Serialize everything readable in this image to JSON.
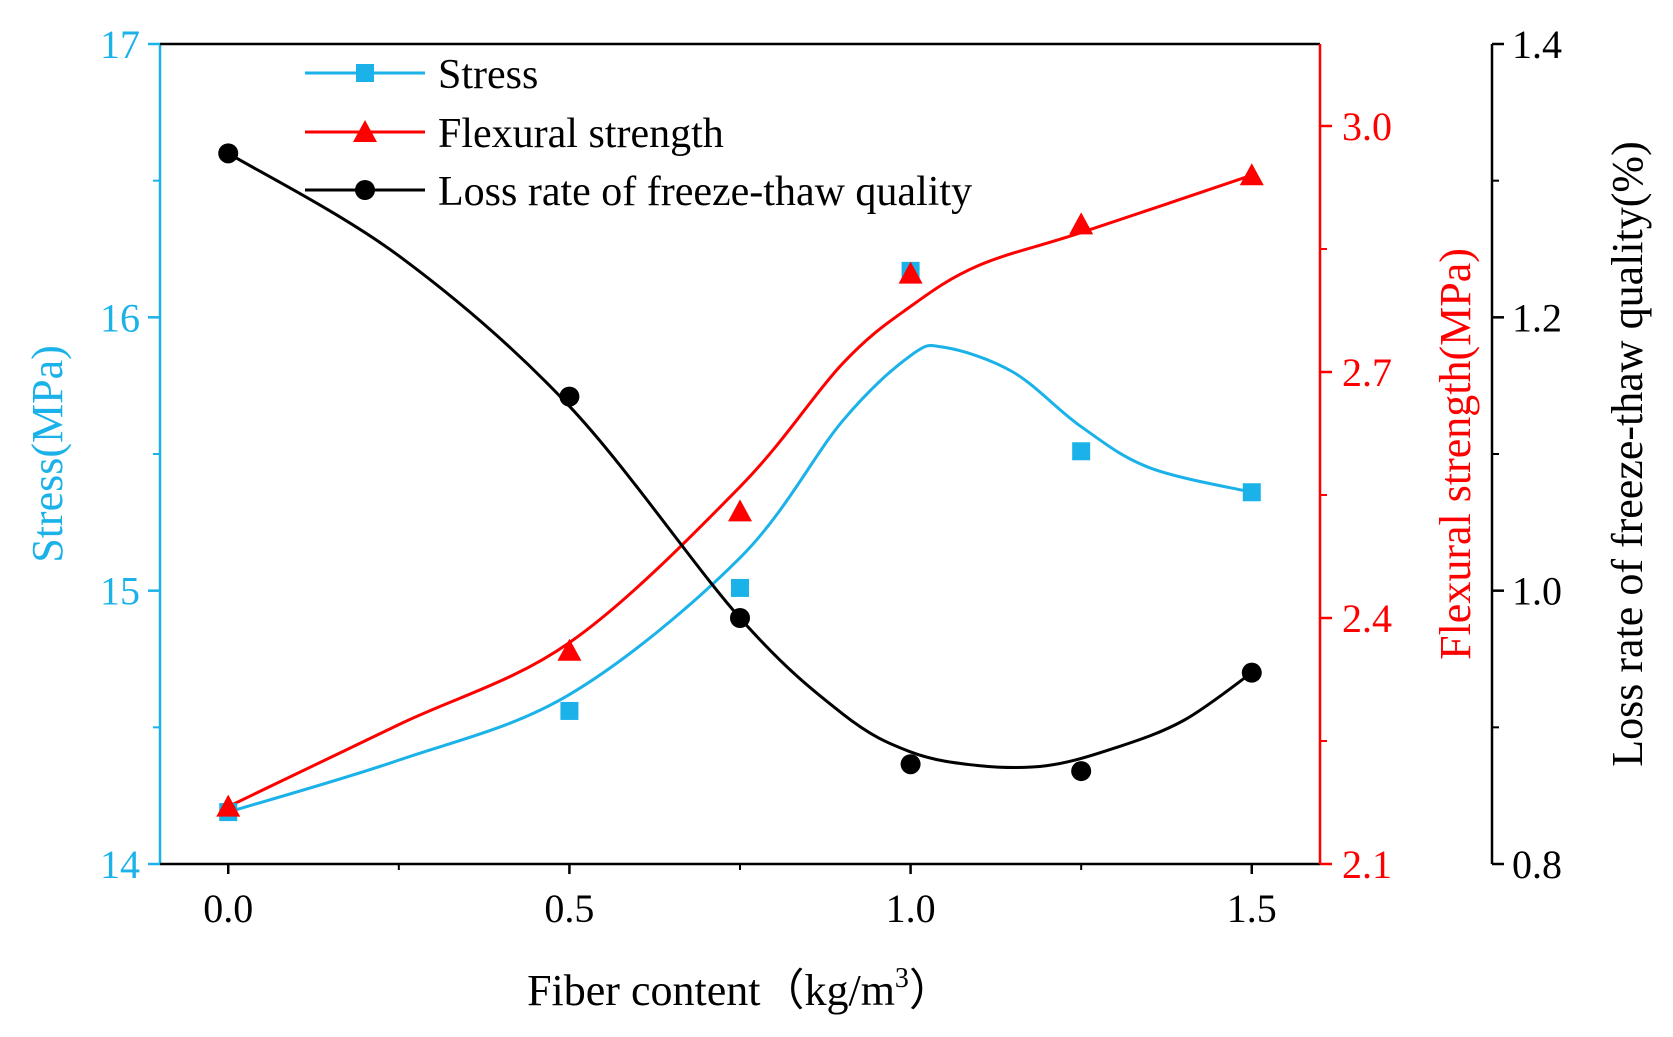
{
  "chart_data": {
    "type": "line",
    "title": "",
    "xlabel": "Fiber content",
    "xlabel_unit_prefix": "（kg/m",
    "xlabel_unit_sup": "3",
    "xlabel_unit_suffix": "）",
    "x_ticks": [
      "0.0",
      "0.5",
      "1.0",
      "1.5"
    ],
    "xlim": [
      -0.1,
      1.6
    ],
    "x": [
      0,
      0.5,
      0.75,
      1.0,
      1.25,
      1.5
    ],
    "legend_position": "top-left",
    "series": [
      {
        "name": "Stress",
        "axis": "left",
        "color": "#1ab2e8",
        "marker": "square",
        "values": [
          14.19,
          14.56,
          15.01,
          16.17,
          15.51,
          15.36
        ],
        "fit_curve": [
          [
            0,
            14.19
          ],
          [
            0.25,
            14.38
          ],
          [
            0.5,
            14.62
          ],
          [
            0.75,
            15.12
          ],
          [
            0.9,
            15.62
          ],
          [
            1.0,
            15.86
          ],
          [
            1.05,
            15.89
          ],
          [
            1.15,
            15.8
          ],
          [
            1.25,
            15.6
          ],
          [
            1.35,
            15.45
          ],
          [
            1.5,
            15.36
          ]
        ]
      },
      {
        "name": "Flexural strength",
        "axis": "right1",
        "color": "#ff0000",
        "marker": "triangle",
        "values": [
          2.17,
          2.36,
          2.53,
          2.82,
          2.88,
          2.94
        ],
        "fit_curve": [
          [
            0,
            2.17
          ],
          [
            0.25,
            2.27
          ],
          [
            0.5,
            2.37
          ],
          [
            0.75,
            2.56
          ],
          [
            0.9,
            2.71
          ],
          [
            1.0,
            2.78
          ],
          [
            1.1,
            2.83
          ],
          [
            1.25,
            2.87
          ],
          [
            1.5,
            2.94
          ]
        ]
      },
      {
        "name": "Loss rate of freeze-thaw quality",
        "axis": "right2",
        "color": "#000000",
        "marker": "circle",
        "values": [
          1.32,
          1.142,
          0.98,
          0.873,
          0.868,
          0.94
        ],
        "fit_curve": [
          [
            0,
            1.32
          ],
          [
            0.25,
            1.245
          ],
          [
            0.5,
            1.135
          ],
          [
            0.75,
            0.98
          ],
          [
            0.9,
            0.91
          ],
          [
            1.0,
            0.882
          ],
          [
            1.1,
            0.872
          ],
          [
            1.2,
            0.872
          ],
          [
            1.3,
            0.885
          ],
          [
            1.4,
            0.905
          ],
          [
            1.5,
            0.94
          ]
        ]
      }
    ],
    "axes": {
      "left": {
        "label": "Stress(MPa)",
        "color": "#1ab2e8",
        "ylim": [
          14,
          17
        ],
        "ticks": [
          "14",
          "15",
          "16",
          "17"
        ]
      },
      "right1": {
        "label": "Flexural strength(MPa)",
        "color": "#ff0000",
        "ylim": [
          2.1,
          3.1
        ],
        "ticks": [
          "2.1",
          "2.4",
          "2.7",
          "3.0"
        ]
      },
      "right2": {
        "label": "Loss rate of freeze-thaw quality(%)",
        "color": "#000000",
        "ylim": [
          0.8,
          1.4
        ],
        "ticks": [
          "0.8",
          "1.0",
          "1.2",
          "1.4"
        ]
      }
    }
  }
}
